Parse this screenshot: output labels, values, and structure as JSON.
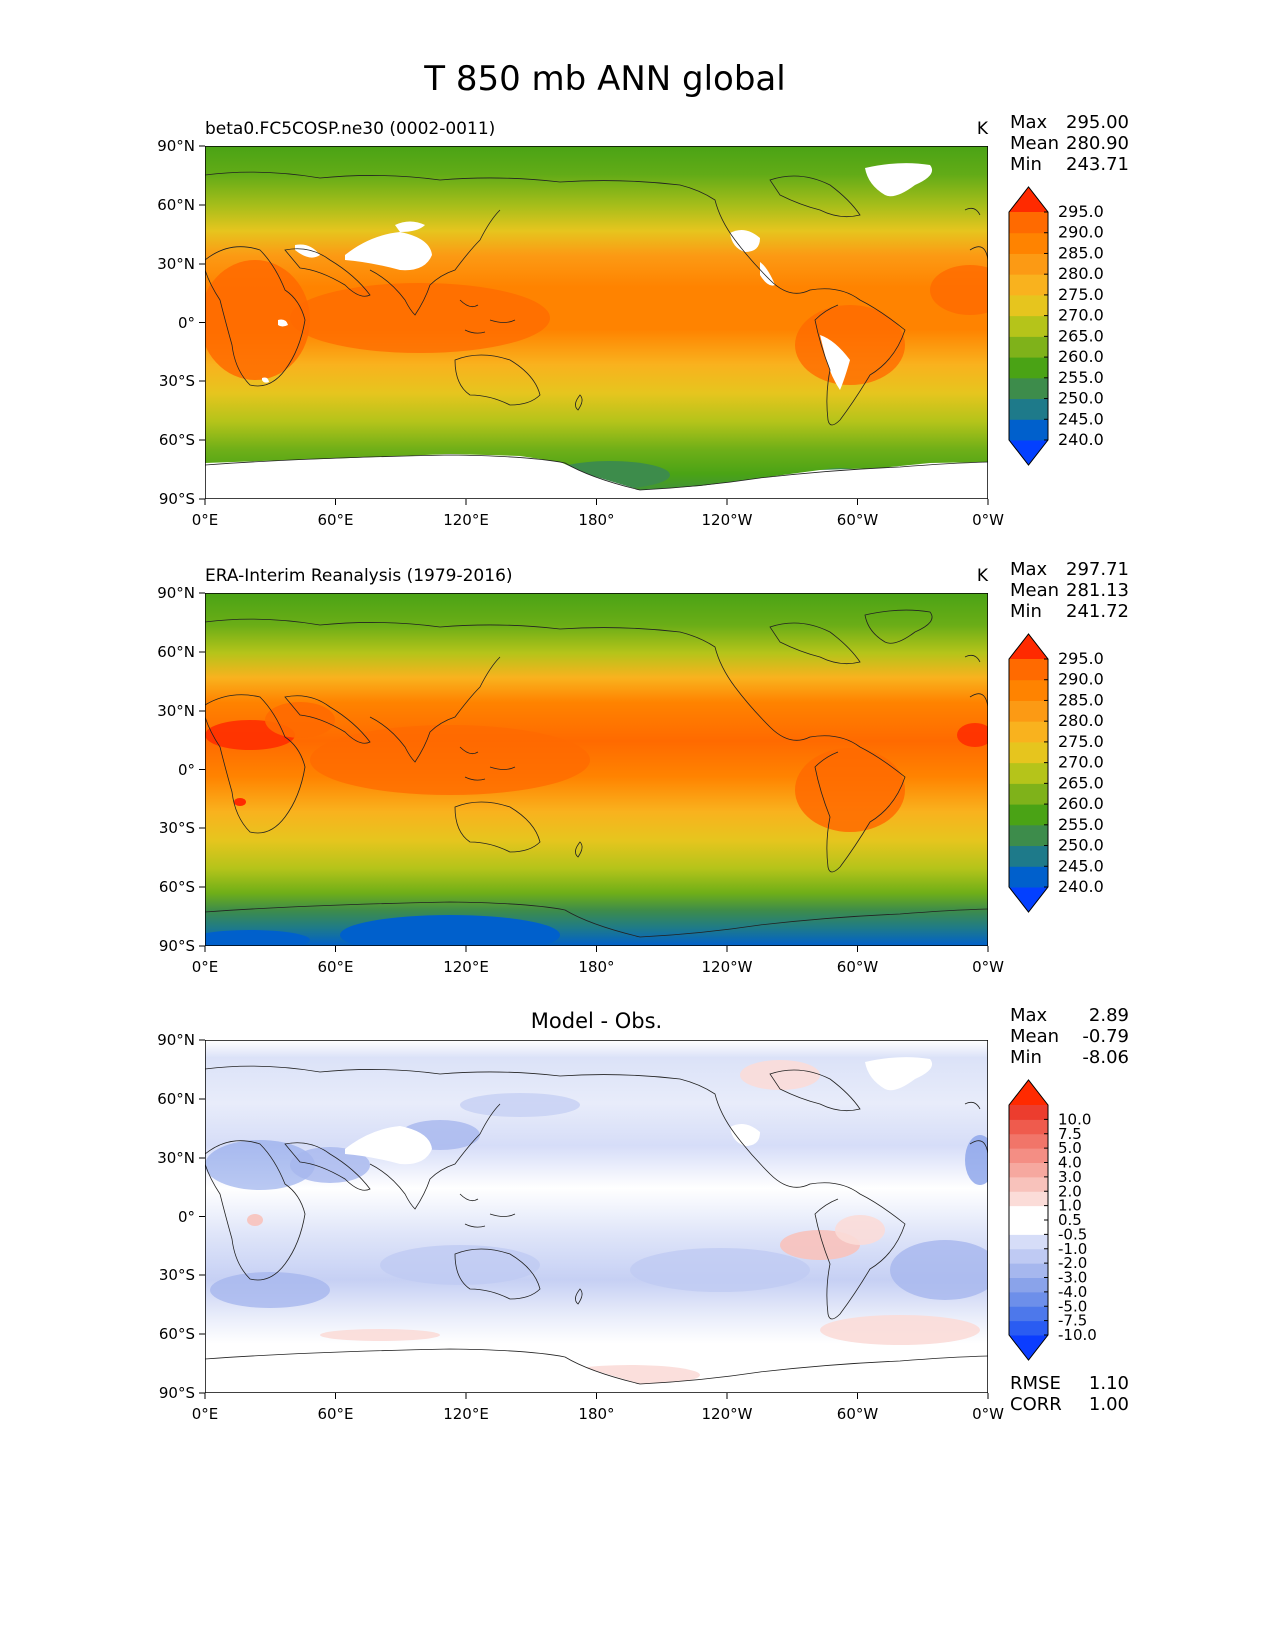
{
  "title": "T 850 mb ANN global",
  "lon_ticks": [
    "0°E",
    "60°E",
    "120°E",
    "180°",
    "120°W",
    "60°W",
    "0°W"
  ],
  "lat_ticks": [
    "90°N",
    "60°N",
    "30°N",
    "0°",
    "30°S",
    "60°S",
    "90°S"
  ],
  "panels": [
    {
      "left_title": "beta0.FC5COSP.ne30 (0002-0011)",
      "center_title": "",
      "units": "K",
      "stats": [
        {
          "label": "Max",
          "value": "295.00"
        },
        {
          "label": "Mean",
          "value": "280.90"
        },
        {
          "label": "Min",
          "value": "243.71"
        }
      ],
      "colorbar": {
        "colors": [
          "#0340ff",
          "#0060cc",
          "#1e7a8a",
          "#3d8c4b",
          "#4aa315",
          "#7fb21a",
          "#b5c41a",
          "#e6c51e",
          "#f9b21e",
          "#fc9a14",
          "#ff8300",
          "#ff6a00",
          "#ff2a00"
        ],
        "labels": [
          "240.0",
          "245.0",
          "250.0",
          "255.0",
          "260.0",
          "265.0",
          "270.0",
          "275.0",
          "280.0",
          "285.0",
          "290.0",
          "295.0"
        ]
      },
      "footer": []
    },
    {
      "left_title": "ERA-Interim Reanalysis (1979-2016)",
      "center_title": "",
      "units": "K",
      "stats": [
        {
          "label": "Max",
          "value": "297.71"
        },
        {
          "label": "Mean",
          "value": "281.13"
        },
        {
          "label": "Min",
          "value": "241.72"
        }
      ],
      "colorbar": {
        "colors": [
          "#0340ff",
          "#0060cc",
          "#1e7a8a",
          "#3d8c4b",
          "#4aa315",
          "#7fb21a",
          "#b5c41a",
          "#e6c51e",
          "#f9b21e",
          "#fc9a14",
          "#ff8300",
          "#ff6a00",
          "#ff2a00"
        ],
        "labels": [
          "240.0",
          "245.0",
          "250.0",
          "255.0",
          "260.0",
          "265.0",
          "270.0",
          "275.0",
          "280.0",
          "285.0",
          "290.0",
          "295.0"
        ]
      },
      "footer": []
    },
    {
      "left_title": "",
      "center_title": "Model - Obs.",
      "units": "",
      "stats": [
        {
          "label": "Max",
          "value": "2.89"
        },
        {
          "label": "Mean",
          "value": "-0.79"
        },
        {
          "label": "Min",
          "value": "-8.06"
        }
      ],
      "colorbar": {
        "colors": [
          "#0b3dff",
          "#2a5cf2",
          "#4d78eb",
          "#6d8fea",
          "#8aa3ea",
          "#a6b7ee",
          "#bfcaf3",
          "#d6ddf8",
          "#ffffff",
          "#ffffff",
          "#fbdcd8",
          "#f8c2bb",
          "#f6a89f",
          "#f48e84",
          "#f17569",
          "#ef5b4d",
          "#ec3d2e",
          "#ff2a00"
        ],
        "labels": [
          "-10.0",
          "-7.5",
          "-5.0",
          "-4.0",
          "-3.0",
          "-2.0",
          "-1.0",
          "-0.5",
          "0.5",
          "1.0",
          "2.0",
          "3.0",
          "4.0",
          "5.0",
          "7.5",
          "10.0"
        ]
      },
      "footer": [
        {
          "label": "RMSE",
          "value": "1.10"
        },
        {
          "label": "CORR",
          "value": "1.00"
        }
      ]
    }
  ]
}
